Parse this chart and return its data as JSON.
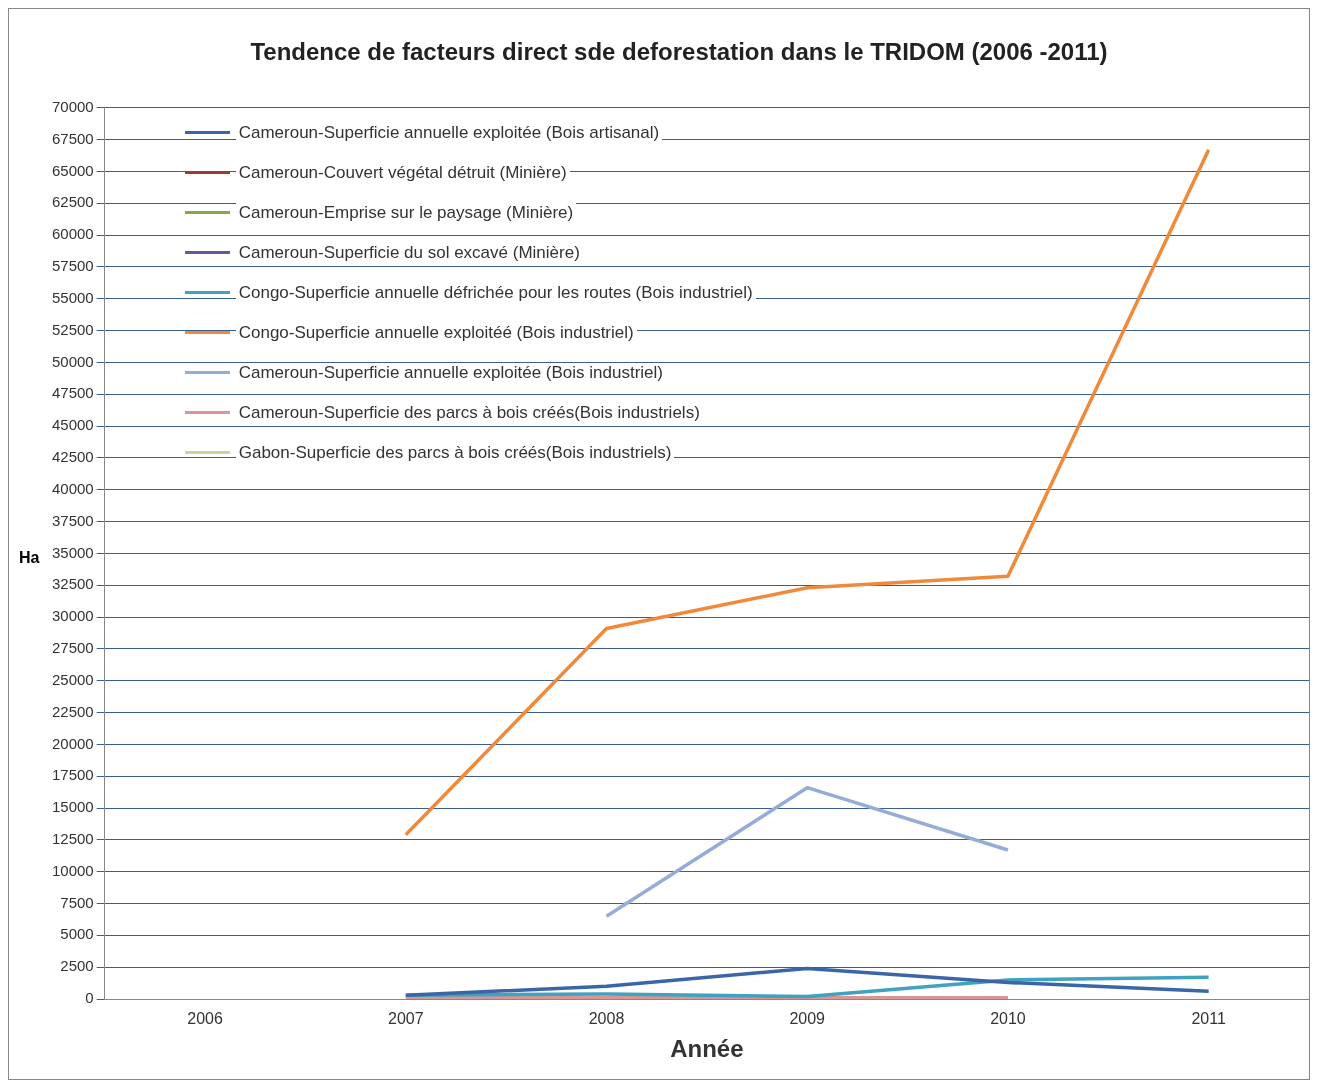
{
  "chart_data": {
    "type": "line",
    "title": "Tendence de facteurs direct sde deforestation dans le TRIDOM (2006 -2011)",
    "xlabel": "Année",
    "ylabel": "Ha",
    "categories": [
      "2006",
      "2007",
      "2008",
      "2009",
      "2010",
      "2011"
    ],
    "series": [
      {
        "name": "Cameroun-Superficie annuelle exploitée (Bois artisanal)",
        "color": "#3a66a7",
        "values": [
          null,
          300,
          1000,
          2400,
          1300,
          600
        ]
      },
      {
        "name": "Cameroun-Couvert végétal détruit (Minière)",
        "color": "#9c3a38",
        "values": [
          null,
          null,
          null,
          null,
          null,
          null
        ]
      },
      {
        "name": "Cameroun-Emprise sur le paysage  (Minière)",
        "color": "#8aa64c",
        "values": [
          null,
          null,
          null,
          null,
          null,
          null
        ]
      },
      {
        "name": "Cameroun-Superficie du sol excavé (Minière)",
        "color": "#6b559c",
        "values": [
          null,
          null,
          null,
          null,
          null,
          null
        ]
      },
      {
        "name": "Congo-Superficie annuelle défrichée pour les routes (Bois industriel)",
        "color": "#3fa2c0",
        "values": [
          null,
          300,
          400,
          200,
          1500,
          1700
        ]
      },
      {
        "name": "Congo-Superficie annuelle exploitéé (Bois industriel)",
        "color": "#f08a3a",
        "values": [
          null,
          12900,
          29100,
          32300,
          33200,
          66700
        ]
      },
      {
        "name": "Cameroun-Superficie annuelle exploitée (Bois industriel)",
        "color": "#95acd6",
        "values": [
          null,
          null,
          6500,
          16600,
          11700,
          null
        ]
      },
      {
        "name": "Cameroun-Superficie des parcs à bois créés(Bois industriels)",
        "color": "#d99694",
        "values": [
          null,
          100,
          100,
          100,
          100,
          null
        ]
      },
      {
        "name": "Gabon-Superficie des parcs à bois créés(Bois industriels)",
        "color": "#c3d69b",
        "values": [
          null,
          null,
          null,
          null,
          null,
          null
        ]
      }
    ],
    "ylim": [
      0,
      70000
    ],
    "yticks": [
      0,
      2500,
      5000,
      7500,
      10000,
      12500,
      15000,
      17500,
      20000,
      22500,
      25000,
      27500,
      30000,
      32500,
      35000,
      37500,
      40000,
      42500,
      45000,
      47500,
      50000,
      52500,
      55000,
      57500,
      60000,
      62500,
      65000,
      67500,
      70000
    ],
    "grid": "y",
    "legend": "top left",
    "marker": "none",
    "line_style": "solid"
  }
}
